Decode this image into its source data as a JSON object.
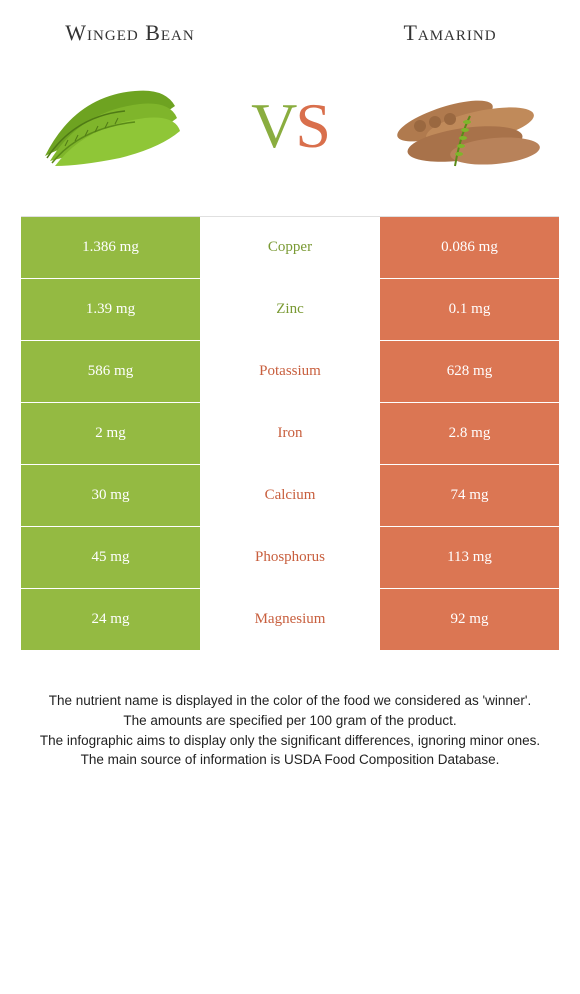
{
  "colors": {
    "green": "#94ba42",
    "orange": "#db7653",
    "green_text": "#7a9a34",
    "orange_text": "#c85f3e"
  },
  "foods": {
    "left": "Winged Bean",
    "right": "Tamarind"
  },
  "vs": {
    "v": "V",
    "s": "S"
  },
  "rows": [
    {
      "nutrient": "Copper",
      "left": "1.386 mg",
      "right": "0.086 mg",
      "winner": "left"
    },
    {
      "nutrient": "Zinc",
      "left": "1.39 mg",
      "right": "0.1 mg",
      "winner": "left"
    },
    {
      "nutrient": "Potassium",
      "left": "586 mg",
      "right": "628 mg",
      "winner": "right"
    },
    {
      "nutrient": "Iron",
      "left": "2 mg",
      "right": "2.8 mg",
      "winner": "right"
    },
    {
      "nutrient": "Calcium",
      "left": "30 mg",
      "right": "74 mg",
      "winner": "right"
    },
    {
      "nutrient": "Phosphorus",
      "left": "45 mg",
      "right": "113 mg",
      "winner": "right"
    },
    {
      "nutrient": "Magnesium",
      "left": "24 mg",
      "right": "92 mg",
      "winner": "right"
    }
  ],
  "footer": {
    "l1": "The nutrient name is displayed in the color of the food we considered as 'winner'.",
    "l2": "The amounts are specified per 100 gram of the product.",
    "l3": "The infographic aims to display only the significant differences, ignoring minor ones.",
    "l4": "The main source of information is USDA Food Composition Database."
  }
}
